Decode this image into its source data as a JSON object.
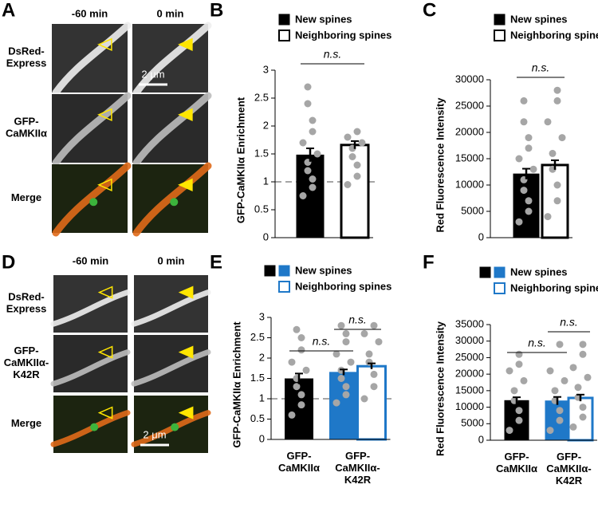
{
  "image_panels": [
    {
      "panel_label": "A",
      "columns": [
        "-60 min",
        "0 min"
      ],
      "rows": [
        "DsRed-Express",
        "GFP-CaMKIIα",
        "Merge"
      ],
      "scale_bar": "2 μm"
    },
    {
      "panel_label": "D",
      "columns": [
        "-60 min",
        "0 min"
      ],
      "rows": [
        "DsRed-Express",
        "GFP-CaMKIIα-K42R",
        "Merge"
      ],
      "scale_bar": "2 μm"
    }
  ],
  "chart_data": [
    {
      "panel_label": "B",
      "type": "bar",
      "ylabel": "GFP-CaMKIIα Enrichment",
      "ylim": [
        0,
        3
      ],
      "yticks": [
        0,
        0.5,
        1,
        1.5,
        2,
        2.5,
        3
      ],
      "reference_line": 1,
      "point_color": "#a6a6a6",
      "series": [
        {
          "name": "New spines",
          "color": "#000000",
          "values": [
            1.48
          ],
          "errors": [
            0.12
          ],
          "points": [
            [
              0.75,
              0.9,
              1.05,
              1.2,
              1.35,
              1.5,
              1.7,
              1.9,
              2.1,
              2.4,
              2.7
            ]
          ]
        },
        {
          "name": "Neighboring spines",
          "color": "#ffffff",
          "edge_color": "#000000",
          "values": [
            1.66
          ],
          "errors": [
            0.07
          ],
          "points": [
            [
              0.95,
              1.1,
              1.3,
              1.45,
              1.6,
              1.7,
              1.8,
              1.9
            ]
          ]
        }
      ],
      "annotations": [
        "n.s."
      ]
    },
    {
      "panel_label": "C",
      "type": "bar",
      "ylabel": "Red Fluorescence Intensity",
      "ylim": [
        0,
        30000
      ],
      "yticks": [
        0,
        5000,
        10000,
        15000,
        20000,
        25000,
        30000
      ],
      "point_color": "#a6a6a6",
      "series": [
        {
          "name": "New spines",
          "color": "#000000",
          "values": [
            12100
          ],
          "errors": [
            1000
          ],
          "points": [
            [
              3000,
              5000,
              7000,
              9000,
              11000,
              13000,
              15000,
              17000,
              19000,
              22000,
              26000
            ]
          ]
        },
        {
          "name": "Neighboring spines",
          "color": "#ffffff",
          "edge_color": "#000000",
          "values": [
            13800
          ],
          "errors": [
            900
          ],
          "points": [
            [
              4000,
              7000,
              10000,
              13000,
              16000,
              19000,
              22000,
              26000,
              28000
            ]
          ]
        }
      ],
      "annotations": [
        "n.s."
      ]
    },
    {
      "panel_label": "E",
      "type": "bar",
      "ylabel": "GFP-CaMKIIα Enrichment",
      "ylim": [
        0,
        3
      ],
      "yticks": [
        0,
        0.5,
        1,
        1.5,
        2,
        2.5,
        3
      ],
      "reference_line": 1,
      "point_color": "#a6a6a6",
      "categories": [
        "GFP-CaMKIIα",
        "GFP-CaMKIIα-K42R"
      ],
      "series": [
        {
          "name": "New spines",
          "color": [
            "#000000",
            "#1f78c8"
          ],
          "values": [
            1.49,
            1.65
          ],
          "errors": [
            0.13,
            0.07
          ],
          "points": [
            [
              0.6,
              0.85,
              1.1,
              1.3,
              1.5,
              1.7,
              1.9,
              2.2,
              2.5,
              2.7
            ],
            [
              0.9,
              1.1,
              1.3,
              1.5,
              1.7,
              1.9,
              2.1,
              2.4,
              2.6,
              2.8
            ]
          ]
        },
        {
          "name": "Neighboring spines",
          "color": "#ffffff",
          "edge_color": "#1f78c8",
          "values": [
            null,
            1.8
          ],
          "errors": [
            null,
            0.07
          ],
          "points": [
            null,
            [
              1.0,
              1.3,
              1.6,
              1.9,
              2.1,
              2.4,
              2.6,
              2.8
            ]
          ]
        }
      ],
      "annotations": [
        "n.s.",
        "n.s."
      ]
    },
    {
      "panel_label": "F",
      "type": "bar",
      "ylabel": "Red Fluorescence Intensity",
      "ylim": [
        0,
        35000
      ],
      "yticks": [
        0,
        5000,
        10000,
        15000,
        20000,
        25000,
        30000,
        35000
      ],
      "point_color": "#a6a6a6",
      "categories": [
        "GFP-CaMKIIα",
        "GFP-CaMKIIα-K42R"
      ],
      "series": [
        {
          "name": "New spines",
          "color": [
            "#000000",
            "#1f78c8"
          ],
          "values": [
            12000,
            11900
          ],
          "errors": [
            1000,
            1200
          ],
          "points": [
            [
              3000,
              6000,
              9000,
              12000,
              15000,
              18000,
              21000,
              23000,
              26000
            ],
            [
              3000,
              6000,
              9000,
              12000,
              15000,
              18000,
              21000,
              29000
            ]
          ]
        },
        {
          "name": "Neighboring spines",
          "color": "#ffffff",
          "edge_color": "#1f78c8",
          "values": [
            null,
            12800
          ],
          "errors": [
            null,
            1000
          ],
          "points": [
            null,
            [
              4000,
              7000,
              10000,
              13000,
              16000,
              19000,
              22000,
              26000,
              29000
            ]
          ]
        }
      ],
      "annotations": [
        "n.s.",
        "n.s."
      ]
    }
  ]
}
